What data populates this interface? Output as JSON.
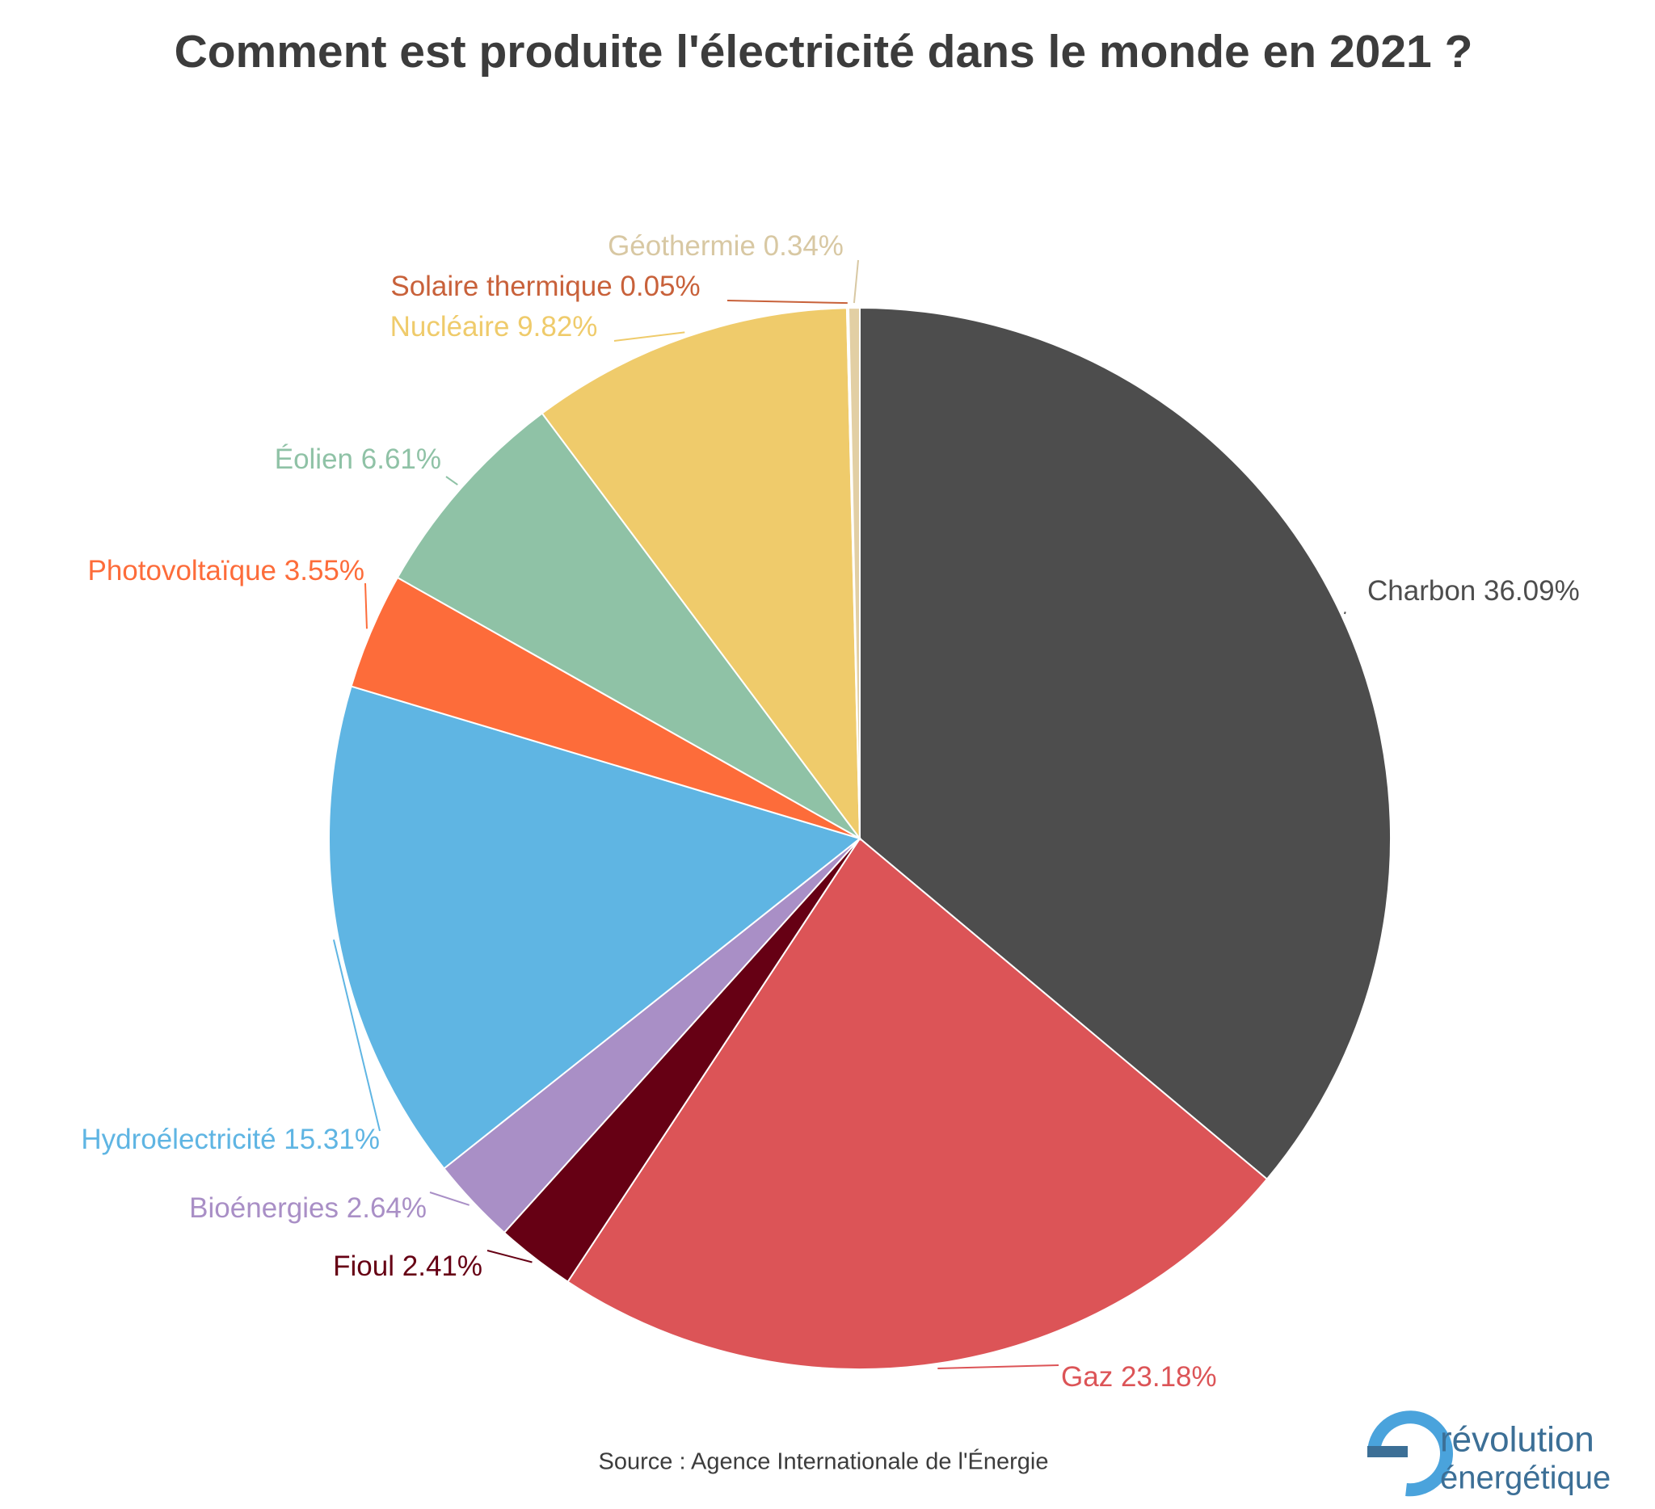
{
  "chart_data": {
    "type": "pie",
    "title": "Comment est produite l'électricité dans le monde en 2021 ?",
    "source": "Source : Agence Internationale de l'Énergie",
    "categories": [
      "Charbon",
      "Gaz",
      "Fioul",
      "Bioénergies",
      "Hydroélectricité",
      "Photovoltaïque",
      "Éolien",
      "Nucléaire",
      "Solaire thermique",
      "Géothermie"
    ],
    "values": [
      36.09,
      23.18,
      2.41,
      2.64,
      15.31,
      3.55,
      6.61,
      9.82,
      0.05,
      0.34
    ],
    "value_labels": [
      "36.09%",
      "23.18%",
      "2.41%",
      "2.64%",
      "15.31%",
      "3.55%",
      "6.61%",
      "9.82%",
      "0.05%",
      "0.34%"
    ],
    "colors": [
      "#4d4d4d",
      "#dc5457",
      "#660014",
      "#a98fc6",
      "#5fb5e3",
      "#fd6c3a",
      "#8fc2a6",
      "#efcb6b",
      "#c8613a",
      "#e2cfa4"
    ],
    "logo": [
      "révolution",
      "énergétique"
    ]
  }
}
